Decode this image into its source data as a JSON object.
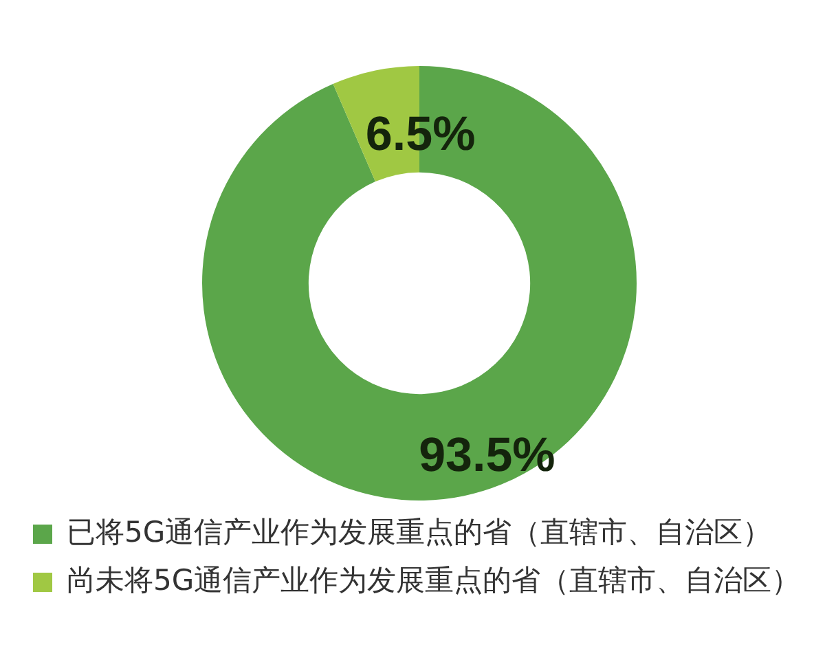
{
  "chart_data": {
    "type": "donut",
    "categories": [
      "已将5G通信产业作为发展重点的省（直辖市、自治区）",
      "尚未将5G通信产业作为发展重点的省（直辖市、自治区）"
    ],
    "values": [
      93.5,
      6.5
    ],
    "colors": [
      "#5ba64a",
      "#a0c843"
    ],
    "value_labels": [
      "93.5%",
      "6.5%"
    ],
    "legend": "bottom"
  }
}
